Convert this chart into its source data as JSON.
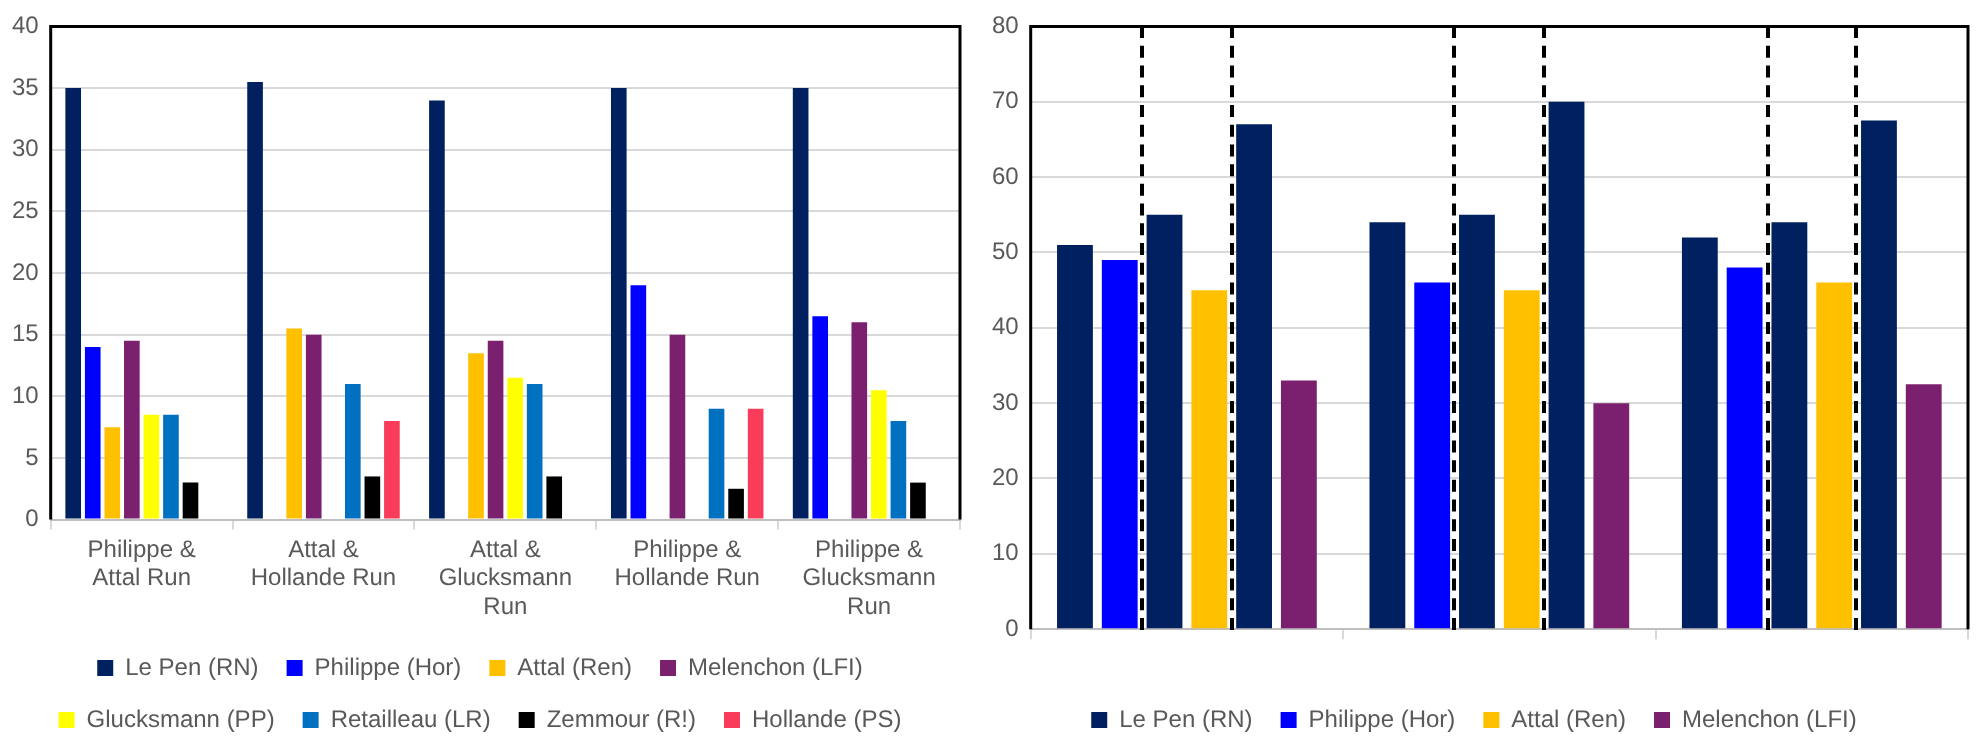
{
  "chart_data": [
    {
      "type": "bar",
      "categories": [
        "Philippe & Attal Run",
        "Attal & Hollande Run",
        "Attal & Glucksmann Run",
        "Philippe & Hollande Run",
        "Philippe & Glucksmann Run"
      ],
      "series": [
        {
          "name": "Le Pen (RN)",
          "color": "#002060",
          "values": [
            35,
            35.5,
            34,
            35,
            35
          ]
        },
        {
          "name": "Philippe (Hor)",
          "color": "#0000ff",
          "values": [
            14,
            null,
            null,
            19,
            16.5
          ]
        },
        {
          "name": "Attal (Ren)",
          "color": "#ffc000",
          "values": [
            7.5,
            15.5,
            13.5,
            null,
            null
          ]
        },
        {
          "name": "Melenchon (LFI)",
          "color": "#7a206e",
          "values": [
            14.5,
            15,
            14.5,
            15,
            16
          ]
        },
        {
          "name": "Glucksmann (PP)",
          "color": "#ffff00",
          "values": [
            8.5,
            null,
            11.5,
            null,
            10.5
          ]
        },
        {
          "name": "Retailleau (LR)",
          "color": "#0070c0",
          "values": [
            8.5,
            11,
            11,
            9,
            8
          ]
        },
        {
          "name": "Zemmour (R!)",
          "color": "#000000",
          "values": [
            3,
            3.5,
            3.5,
            2.5,
            3
          ]
        },
        {
          "name": "Hollande (PS)",
          "color": "#f83c5a",
          "values": [
            null,
            8,
            null,
            9,
            null
          ]
        }
      ],
      "ylim": [
        0,
        40
      ],
      "yticks": [
        0,
        5,
        10,
        15,
        20,
        25,
        30,
        35,
        40
      ],
      "grid": "y",
      "legend": "bottom"
    },
    {
      "type": "bar",
      "categories": [
        null,
        null,
        null
      ],
      "series": [
        {
          "name": "Le Pen (RN)",
          "color": "#002060",
          "values": [
            51,
            54,
            52
          ]
        },
        {
          "name": "Philippe (Hor)",
          "color": "#0000ff",
          "values": [
            49,
            46,
            48
          ]
        },
        {
          "color": "#002060",
          "values": [
            55,
            55,
            54
          ]
        },
        {
          "name": "Attal (Ren)",
          "color": "#ffc000",
          "values": [
            45,
            45,
            46
          ]
        },
        {
          "color": "#002060",
          "values": [
            67,
            70,
            67.5
          ]
        },
        {
          "name": "Melenchon (LFI)",
          "color": "#7a206e",
          "values": [
            33,
            30,
            32.5
          ]
        }
      ],
      "ylim": [
        0,
        80
      ],
      "yticks": [
        0,
        10,
        20,
        30,
        40,
        50,
        60,
        70,
        80
      ],
      "grid": "y",
      "legend": "bottom"
    }
  ]
}
